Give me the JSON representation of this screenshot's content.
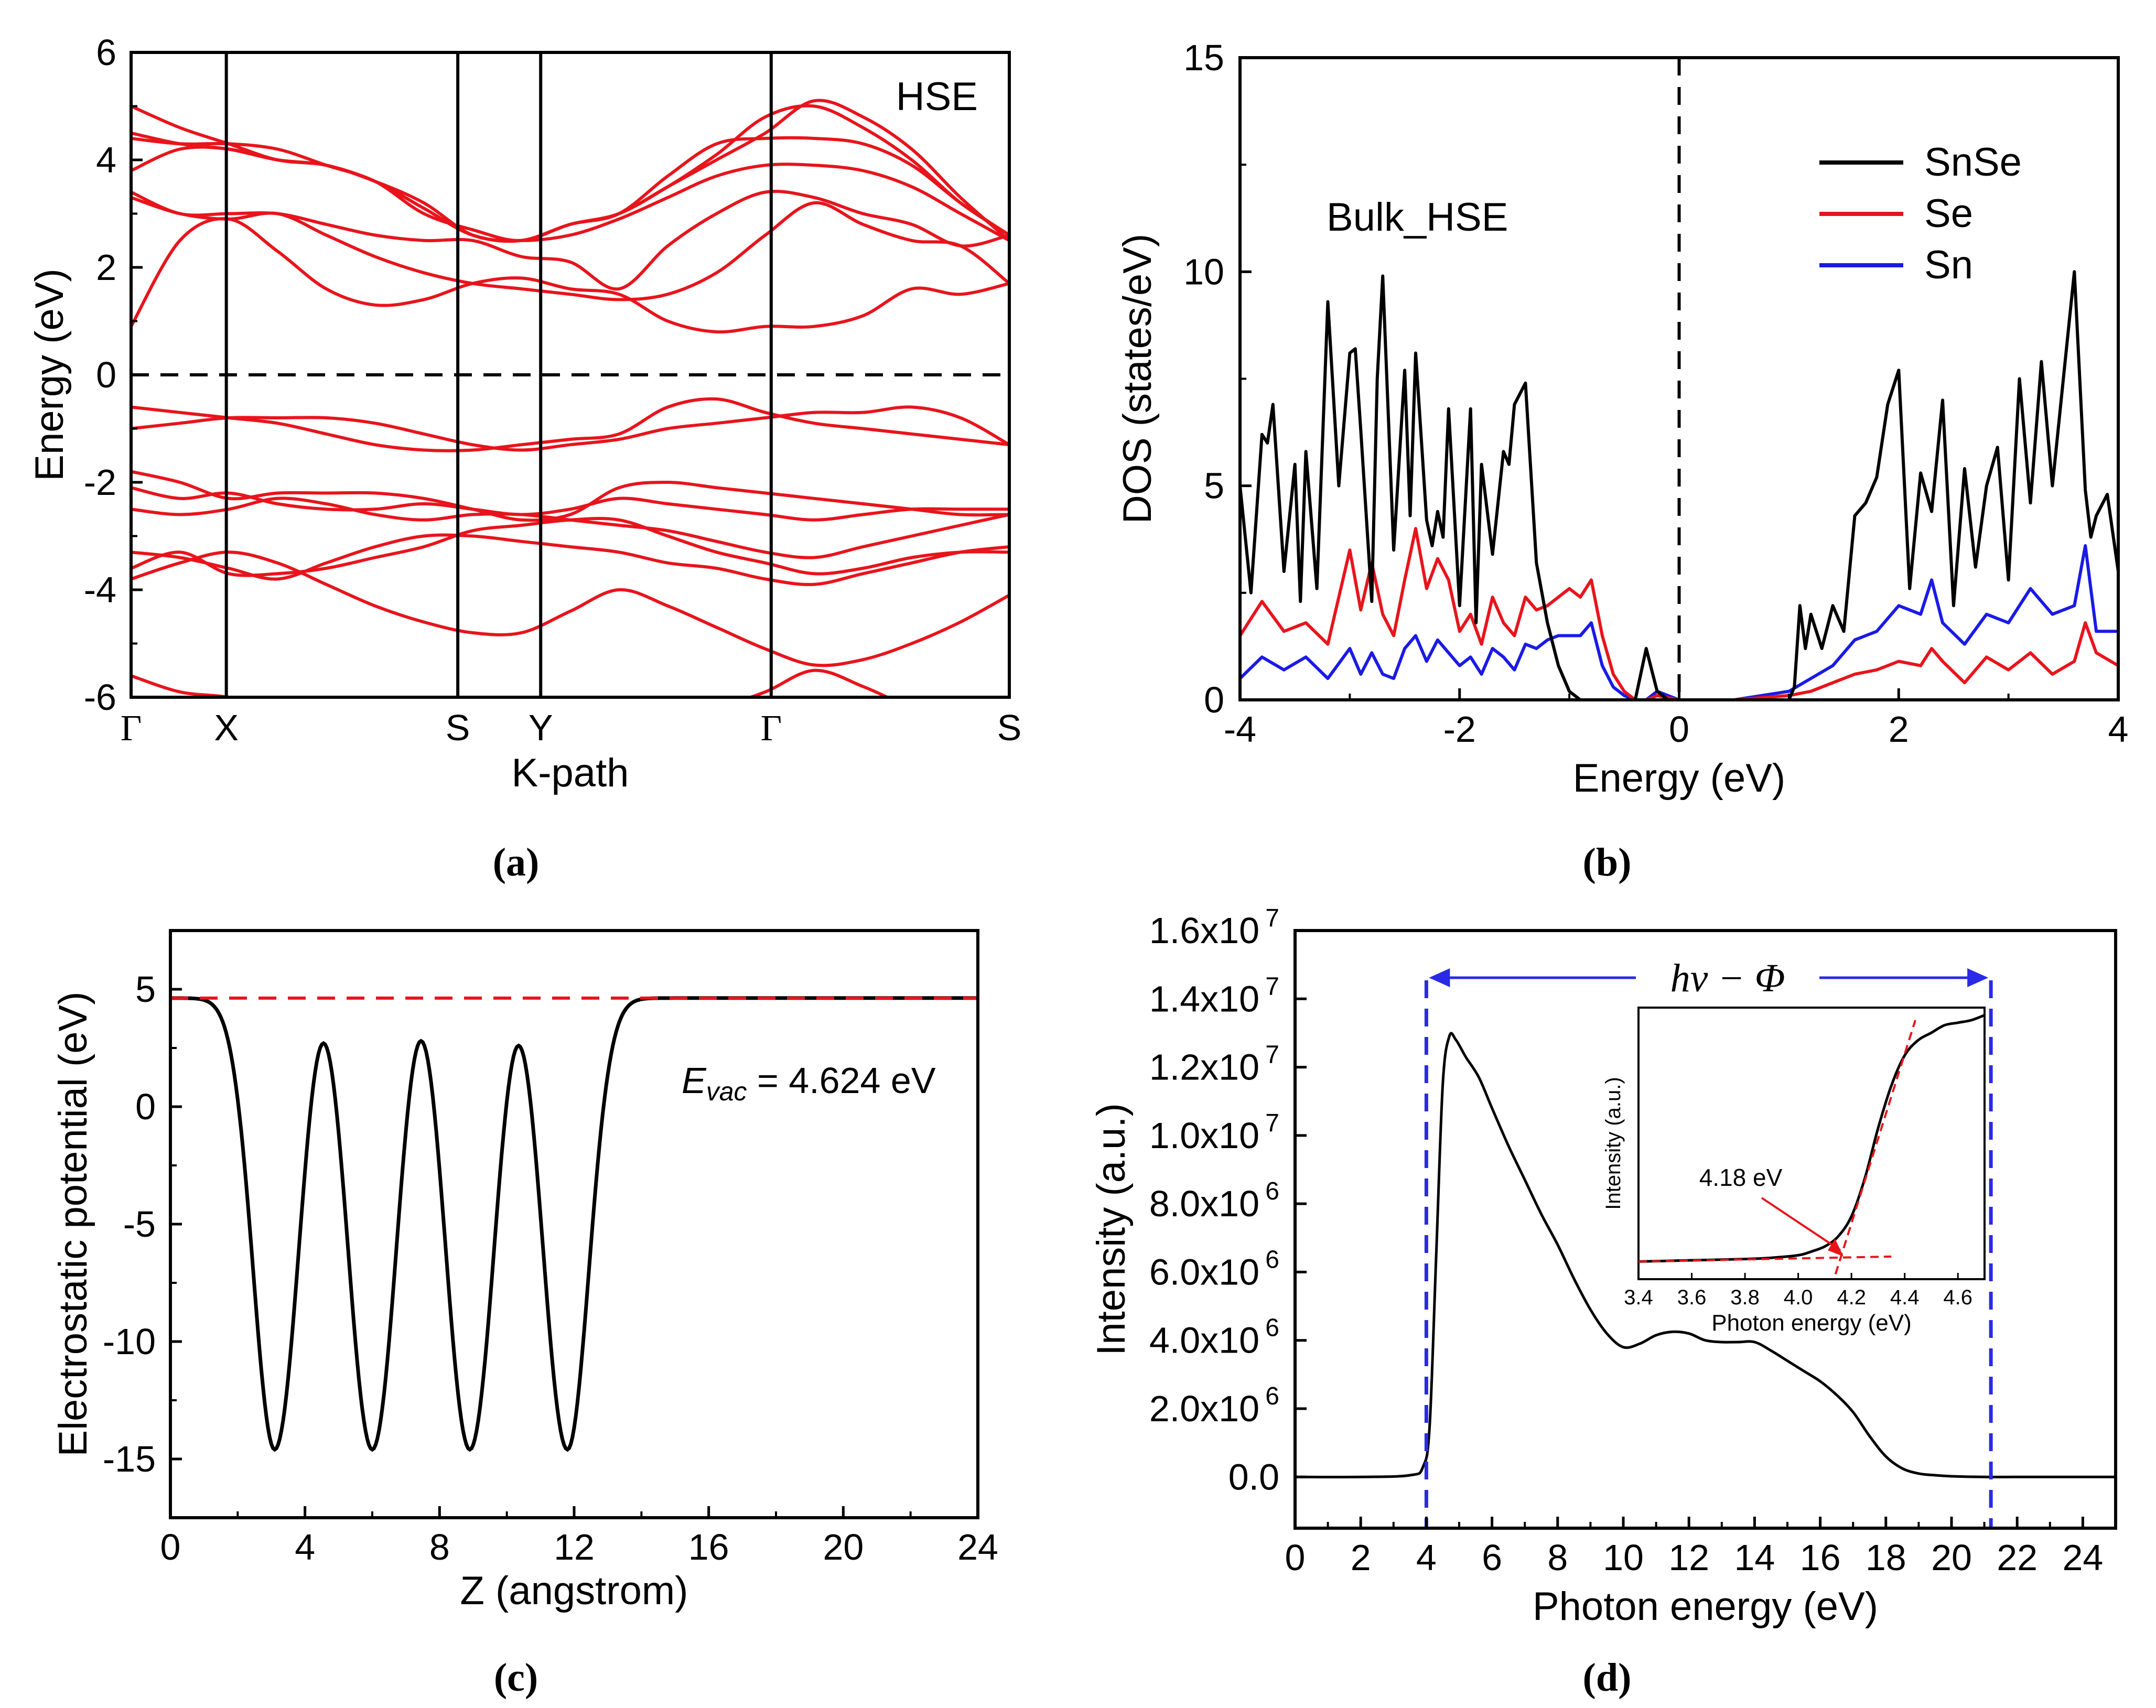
{
  "colors": {
    "black": "#000000",
    "red": "#e8141c",
    "blue": "#1a1ae6",
    "dash_blue": "#2a2ae6"
  },
  "panels": {
    "a": "(a)",
    "b": "(b)",
    "c": "(c)",
    "d": "(d)"
  },
  "chart_data": [
    {
      "id": "a",
      "type": "line",
      "ylabel": "Energy (eV)",
      "xlabel": "K-path",
      "annotation": "HSE",
      "ylim": [
        -6,
        6
      ],
      "yticks": [
        -6,
        -4,
        -2,
        0,
        2,
        4,
        6
      ],
      "kpoints": [
        {
          "label": "Γ",
          "x": 0
        },
        {
          "label": "X",
          "x": 1.0
        },
        {
          "label": "S",
          "x": 3.43
        },
        {
          "label": "Y",
          "x": 4.3
        },
        {
          "label": "Γ",
          "x": 6.72
        },
        {
          "label": "S",
          "x": 9.22
        }
      ],
      "fermi_level": 0,
      "bands": [
        [
          -5.6,
          -5.9,
          -6.0,
          -6.2,
          -6.4,
          -6.6,
          -6.7,
          -6.7,
          -6.7,
          -6.6,
          -6.5,
          -6.4,
          -6.2,
          -5.9,
          -5.5,
          -5.8,
          -6.2,
          -6.5,
          -6.7
        ],
        [
          -3.8,
          -3.5,
          -3.3,
          -3.5,
          -3.9,
          -4.3,
          -4.6,
          -4.8,
          -4.8,
          -4.4,
          -4.0,
          -4.3,
          -4.7,
          -5.1,
          -5.4,
          -5.3,
          -5.0,
          -4.6,
          -4.1
        ],
        [
          -3.6,
          -3.3,
          -3.7,
          -3.7,
          -3.6,
          -3.4,
          -3.2,
          -2.9,
          -2.8,
          -2.7,
          -2.7,
          -3.0,
          -3.3,
          -3.5,
          -3.7,
          -3.6,
          -3.4,
          -3.3,
          -3.3
        ],
        [
          -3.3,
          -3.4,
          -3.6,
          -3.8,
          -3.5,
          -3.2,
          -3.0,
          -3.0,
          -3.1,
          -3.2,
          -3.3,
          -3.5,
          -3.6,
          -3.8,
          -3.9,
          -3.7,
          -3.5,
          -3.3,
          -3.2
        ],
        [
          -2.5,
          -2.6,
          -2.5,
          -2.3,
          -2.4,
          -2.6,
          -2.7,
          -2.6,
          -2.6,
          -2.7,
          -2.8,
          -2.9,
          -3.1,
          -3.3,
          -3.4,
          -3.2,
          -3.0,
          -2.8,
          -2.6
        ],
        [
          -2.1,
          -2.3,
          -2.2,
          -2.4,
          -2.5,
          -2.5,
          -2.4,
          -2.5,
          -2.6,
          -2.5,
          -2.3,
          -2.4,
          -2.5,
          -2.6,
          -2.7,
          -2.6,
          -2.5,
          -2.5,
          -2.5
        ],
        [
          -1.8,
          -2.0,
          -2.3,
          -2.2,
          -2.2,
          -2.2,
          -2.3,
          -2.5,
          -2.7,
          -2.6,
          -2.1,
          -2.0,
          -2.1,
          -2.2,
          -2.3,
          -2.4,
          -2.5,
          -2.6,
          -2.6
        ],
        [
          -1.0,
          -0.9,
          -0.8,
          -0.8,
          -0.8,
          -0.9,
          -1.1,
          -1.3,
          -1.4,
          -1.3,
          -1.2,
          -1.0,
          -0.9,
          -0.8,
          -0.7,
          -0.7,
          -0.6,
          -0.8,
          -1.3
        ],
        [
          -0.6,
          -0.7,
          -0.8,
          -0.9,
          -1.1,
          -1.3,
          -1.4,
          -1.4,
          -1.3,
          -1.2,
          -1.1,
          -0.6,
          -0.45,
          -0.7,
          -0.9,
          -1.0,
          -1.1,
          -1.2,
          -1.3
        ]
      ],
      "conduction": [
        [
          0.9,
          2.5,
          2.9,
          2.3,
          1.6,
          1.3,
          1.4,
          1.7,
          1.8,
          1.6,
          1.5,
          1.0,
          0.8,
          0.9,
          0.9,
          1.1,
          1.6,
          1.5,
          1.7
        ],
        [
          3.3,
          3.0,
          2.9,
          3.0,
          2.6,
          2.2,
          1.9,
          1.7,
          1.6,
          1.5,
          1.4,
          1.5,
          1.9,
          2.6,
          3.2,
          2.8,
          2.5,
          2.4,
          1.7
        ],
        [
          3.4,
          3.0,
          3.0,
          3.0,
          2.8,
          2.6,
          2.5,
          2.5,
          2.2,
          2.1,
          1.6,
          2.4,
          3.0,
          3.4,
          3.3,
          3.0,
          2.8,
          2.4,
          2.6
        ],
        [
          3.8,
          4.2,
          4.2,
          4.0,
          3.9,
          3.6,
          3.2,
          2.6,
          2.5,
          2.6,
          2.9,
          3.3,
          3.7,
          3.9,
          3.9,
          3.8,
          3.5,
          3.0,
          2.5
        ],
        [
          4.4,
          4.3,
          4.3,
          4.2,
          3.9,
          3.6,
          3.0,
          2.7,
          2.5,
          2.8,
          3.0,
          3.7,
          4.3,
          4.4,
          4.4,
          4.3,
          3.9,
          3.2,
          2.6
        ],
        [
          4.5,
          4.3,
          4.2,
          4.0,
          3.9,
          3.6,
          3.1,
          2.6,
          2.5,
          2.8,
          3.0,
          3.5,
          4.1,
          4.8,
          5.0,
          4.6,
          4.0,
          3.2,
          2.6
        ],
        [
          5.0,
          4.6,
          4.3,
          4.0,
          3.9,
          3.6,
          3.1,
          2.6,
          2.5,
          2.8,
          3.0,
          3.5,
          4.0,
          4.5,
          5.1,
          4.8,
          4.2,
          3.3,
          2.5
        ]
      ]
    },
    {
      "id": "b",
      "type": "line",
      "ylabel": "DOS (states/eV)",
      "xlabel": "Energy (eV)",
      "annotation": "Bulk_HSE",
      "xlim": [
        -4,
        4
      ],
      "ylim": [
        0,
        15
      ],
      "xticks": [
        -4,
        -2,
        0,
        2,
        4
      ],
      "yticks": [
        0,
        5,
        10,
        15
      ],
      "fermi_level": 0,
      "series": [
        {
          "name": "SnSe",
          "color": "#000000",
          "x": [
            -4.0,
            -3.9,
            -3.8,
            -3.75,
            -3.7,
            -3.6,
            -3.5,
            -3.45,
            -3.4,
            -3.3,
            -3.2,
            -3.1,
            -3.0,
            -2.95,
            -2.9,
            -2.8,
            -2.75,
            -2.7,
            -2.6,
            -2.5,
            -2.45,
            -2.4,
            -2.3,
            -2.25,
            -2.2,
            -2.15,
            -2.1,
            -2.0,
            -1.9,
            -1.85,
            -1.8,
            -1.7,
            -1.6,
            -1.55,
            -1.5,
            -1.4,
            -1.3,
            -1.2,
            -1.1,
            -1.0,
            -0.9,
            -0.8,
            -0.75,
            -0.7,
            -0.6,
            -0.5,
            -0.4,
            -0.3,
            -0.2,
            -0.1,
            0.0,
            0.5,
            0.9,
            1.0,
            1.05,
            1.1,
            1.15,
            1.2,
            1.3,
            1.4,
            1.5,
            1.6,
            1.7,
            1.8,
            1.9,
            2.0,
            2.1,
            2.2,
            2.3,
            2.4,
            2.5,
            2.6,
            2.7,
            2.8,
            2.9,
            3.0,
            3.1,
            3.2,
            3.3,
            3.4,
            3.5,
            3.6,
            3.7,
            3.75,
            3.8,
            3.9,
            4.0
          ],
          "y": [
            5.0,
            2.5,
            6.2,
            6.0,
            6.9,
            3.0,
            5.5,
            2.3,
            5.8,
            2.6,
            9.3,
            5.0,
            8.1,
            8.2,
            6.3,
            2.3,
            7.5,
            9.9,
            3.5,
            7.7,
            4.3,
            8.1,
            4.2,
            3.6,
            4.4,
            3.8,
            6.8,
            2.2,
            6.8,
            1.8,
            5.5,
            3.4,
            5.8,
            5.5,
            6.9,
            7.4,
            3.2,
            1.8,
            0.8,
            0.2,
            0.0,
            0.0,
            0.0,
            0.0,
            0.0,
            0.0,
            0.0,
            1.2,
            0.2,
            0.0,
            0.0,
            0.0,
            0.0,
            0.0,
            0.3,
            2.2,
            1.2,
            2.0,
            1.2,
            2.2,
            1.6,
            4.3,
            4.6,
            5.2,
            6.9,
            7.7,
            2.6,
            5.3,
            4.4,
            7.0,
            2.2,
            5.4,
            3.1,
            5.0,
            5.9,
            2.8,
            7.5,
            4.6,
            7.9,
            5.0,
            7.5,
            10.0,
            4.9,
            3.8,
            4.3,
            4.8,
            3.0
          ]
        },
        {
          "name": "Se",
          "color": "#e8141c",
          "x": [
            -4.0,
            -3.8,
            -3.6,
            -3.4,
            -3.2,
            -3.0,
            -2.9,
            -2.8,
            -2.7,
            -2.6,
            -2.5,
            -2.4,
            -2.3,
            -2.2,
            -2.1,
            -2.0,
            -1.9,
            -1.8,
            -1.7,
            -1.6,
            -1.5,
            -1.4,
            -1.3,
            -1.2,
            -1.1,
            -1.0,
            -0.9,
            -0.8,
            -0.7,
            -0.6,
            -0.5,
            -0.4,
            -0.3,
            -0.2,
            0.0,
            0.5,
            1.0,
            1.2,
            1.4,
            1.6,
            1.8,
            2.0,
            2.2,
            2.3,
            2.4,
            2.6,
            2.8,
            3.0,
            3.2,
            3.4,
            3.6,
            3.7,
            3.8,
            4.0
          ],
          "y": [
            1.5,
            2.3,
            1.6,
            1.8,
            1.3,
            3.5,
            2.1,
            3.2,
            2.0,
            1.5,
            2.8,
            4.0,
            2.6,
            3.3,
            2.8,
            1.6,
            2.0,
            1.3,
            2.4,
            1.8,
            1.5,
            2.4,
            2.1,
            2.2,
            2.4,
            2.6,
            2.4,
            2.8,
            1.5,
            0.6,
            0.2,
            0.0,
            0.0,
            0.1,
            0.0,
            0.0,
            0.1,
            0.2,
            0.4,
            0.6,
            0.7,
            0.9,
            0.8,
            1.2,
            0.9,
            0.4,
            1.0,
            0.7,
            1.1,
            0.6,
            0.9,
            1.8,
            1.1,
            0.8
          ]
        },
        {
          "name": "Sn",
          "color": "#1a1ae6",
          "x": [
            -4.0,
            -3.8,
            -3.6,
            -3.4,
            -3.2,
            -3.0,
            -2.9,
            -2.8,
            -2.7,
            -2.6,
            -2.5,
            -2.4,
            -2.3,
            -2.2,
            -2.1,
            -2.0,
            -1.9,
            -1.8,
            -1.7,
            -1.6,
            -1.5,
            -1.4,
            -1.3,
            -1.2,
            -1.1,
            -1.0,
            -0.9,
            -0.8,
            -0.7,
            -0.6,
            -0.5,
            -0.4,
            -0.3,
            -0.2,
            0.0,
            0.5,
            1.0,
            1.2,
            1.4,
            1.6,
            1.8,
            2.0,
            2.2,
            2.3,
            2.4,
            2.6,
            2.8,
            3.0,
            3.2,
            3.4,
            3.6,
            3.7,
            3.8,
            4.0
          ],
          "y": [
            0.5,
            1.0,
            0.7,
            1.0,
            0.5,
            1.2,
            0.6,
            1.1,
            0.6,
            0.5,
            1.2,
            1.5,
            0.9,
            1.4,
            1.1,
            0.8,
            1.0,
            0.6,
            1.2,
            1.0,
            0.7,
            1.3,
            1.2,
            1.4,
            1.5,
            1.5,
            1.5,
            1.8,
            0.8,
            0.3,
            0.1,
            0.0,
            0.0,
            0.2,
            0.0,
            0.0,
            0.2,
            0.5,
            0.8,
            1.4,
            1.6,
            2.2,
            2.0,
            2.8,
            1.8,
            1.3,
            2.0,
            1.8,
            2.6,
            2.0,
            2.2,
            3.6,
            1.6,
            1.6
          ]
        }
      ]
    },
    {
      "id": "c",
      "type": "line",
      "ylabel": "Electrostatic potential (eV)",
      "xlabel": "Z (angstrom)",
      "annotation_symbol": "E",
      "annotation_sub": "vac",
      "annotation_value": " = 4.624 eV",
      "xlim": [
        0,
        24
      ],
      "ylim": [
        -17.5,
        7.5
      ],
      "xticks": [
        0,
        4,
        8,
        12,
        16,
        20,
        24
      ],
      "yticks": [
        -15,
        -10,
        -5,
        0,
        5
      ],
      "vacuum_level": 4.624,
      "well_centers": [
        3.1,
        6.0,
        8.9,
        11.8
      ],
      "well_min": -14.6,
      "barrier_max": [
        2.7,
        2.8,
        2.6
      ]
    },
    {
      "id": "d",
      "type": "line",
      "ylabel": "Intensity (a.u.)",
      "xlabel": "Photon energy (eV)",
      "annotation": "hν − Φ",
      "xlim": [
        0,
        25
      ],
      "ylim": [
        -1500000,
        16000000
      ],
      "xticks": [
        0,
        2,
        4,
        6,
        8,
        10,
        12,
        14,
        16,
        18,
        20,
        22,
        24
      ],
      "ytick_values": [
        0,
        2000000,
        4000000,
        6000000,
        8000000,
        10000000,
        12000000,
        14000000,
        16000000
      ],
      "ytick_labels": [
        {
          "m": "0.0",
          "e": ""
        },
        {
          "m": "2.0x10",
          "e": "6"
        },
        {
          "m": "4.0x10",
          "e": "6"
        },
        {
          "m": "6.0x10",
          "e": "6"
        },
        {
          "m": "8.0x10",
          "e": "6"
        },
        {
          "m": "1.0x10",
          "e": "7"
        },
        {
          "m": "1.2x10",
          "e": "7"
        },
        {
          "m": "1.4x10",
          "e": "7"
        },
        {
          "m": "1.6x10",
          "e": "7"
        }
      ],
      "cutoffs": [
        4.0,
        21.2
      ],
      "series": [
        {
          "x": [
            0,
            2,
            3.5,
            3.9,
            4.1,
            4.3,
            4.5,
            4.7,
            4.9,
            5.2,
            5.6,
            6.0,
            6.5,
            7.0,
            7.5,
            8.0,
            8.5,
            9.0,
            9.5,
            10.0,
            10.5,
            11.0,
            11.5,
            12.0,
            12.5,
            13.0,
            13.5,
            14.0,
            14.5,
            15.0,
            15.5,
            16.0,
            16.5,
            17.0,
            17.5,
            18.0,
            18.5,
            19.0,
            19.5,
            20.0,
            21.0,
            22.0,
            23.0,
            25.0
          ],
          "y": [
            0,
            0,
            50000,
            300000,
            1500000,
            6500000,
            11500000,
            12900000,
            12800000,
            12300000,
            11700000,
            10800000,
            9700000,
            8700000,
            7700000,
            6800000,
            5800000,
            4900000,
            4200000,
            3800000,
            3900000,
            4150000,
            4250000,
            4200000,
            4000000,
            3950000,
            3950000,
            3950000,
            3700000,
            3400000,
            3100000,
            2800000,
            2400000,
            1900000,
            1200000,
            600000,
            250000,
            100000,
            50000,
            20000,
            0,
            0,
            0,
            0
          ]
        }
      ],
      "inset": {
        "xlabel": "Photon energy (eV)",
        "ylabel": "Intensity (a.u.)",
        "xlim": [
          3.4,
          4.7
        ],
        "xticks": [
          3.4,
          3.6,
          3.8,
          4.0,
          4.2,
          4.4,
          4.6
        ],
        "annotation": "4.18 eV",
        "x": [
          3.4,
          3.6,
          3.8,
          3.9,
          4.0,
          4.05,
          4.1,
          4.15,
          4.2,
          4.25,
          4.3,
          4.35,
          4.4,
          4.45,
          4.5,
          4.55,
          4.6,
          4.65,
          4.7
        ],
        "y": [
          0.02,
          0.025,
          0.03,
          0.035,
          0.045,
          0.06,
          0.08,
          0.12,
          0.2,
          0.35,
          0.55,
          0.72,
          0.84,
          0.9,
          0.93,
          0.96,
          0.97,
          0.98,
          1.0
        ]
      }
    }
  ]
}
